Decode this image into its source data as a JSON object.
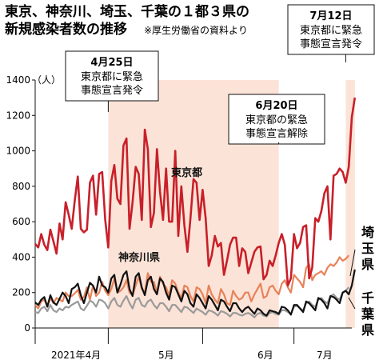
{
  "chart_data": {
    "type": "line",
    "title_lines": [
      "東京、神奈川、埼玉、千葉の１都３県の",
      "新規感染者数の推移"
    ],
    "source_note": "※厚生労働省の資料より",
    "unit_label": "（人）",
    "yticks": [
      0,
      200,
      400,
      600,
      800,
      1000,
      1200,
      1400
    ],
    "ylim": [
      0,
      1400
    ],
    "xlabels": [
      "2021年4月",
      "5月",
      "6月",
      "7月"
    ],
    "emergency_periods": [
      {
        "start_day": 24,
        "end_day": 80
      },
      {
        "start_day": 102,
        "end_day": 105
      }
    ],
    "annotations": [
      {
        "date": "4月25日",
        "text_lines": [
          "東京都に緊急",
          "事態宣言発令"
        ]
      },
      {
        "date": "6月20日",
        "text_lines": [
          "東京都の緊急",
          "事態宣言解除"
        ]
      },
      {
        "date": "7月12日",
        "text_lines": [
          "東京都に緊急",
          "事態宣言発令"
        ]
      }
    ],
    "series": [
      {
        "name": "東京都",
        "color": "#c8202a",
        "x_start_day": 0,
        "values": [
          475,
          455,
          530,
          470,
          440,
          555,
          490,
          420,
          590,
          500,
          710,
          640,
          560,
          720,
          855,
          560,
          540,
          555,
          820,
          860,
          640,
          870,
          880,
          610,
          455,
          830,
          920,
          730,
          700,
          1030,
          1070,
          560,
          710,
          910,
          870,
          610,
          1120,
          1010,
          570,
          650,
          1010,
          770,
          610,
          900,
          600,
          600,
          1000,
          520,
          800,
          580,
          430,
          620,
          840,
          820,
          610,
          780,
          620,
          350,
          410,
          520,
          460,
          480,
          300,
          380,
          470,
          510,
          510,
          350,
          450,
          430,
          310,
          370,
          430,
          455,
          460,
          275,
          300,
          380,
          350,
          410,
          480,
          530,
          470,
          240,
          280,
          530,
          450,
          480,
          570,
          580,
          280,
          340,
          620,
          600,
          660,
          760,
          800,
          500,
          860,
          870,
          900,
          880,
          820,
          910,
          1190,
          1300
        ]
      },
      {
        "name": "神奈川県",
        "color": "#111111",
        "x_start_day": 0,
        "values": [
          145,
          130,
          160,
          175,
          120,
          185,
          145,
          130,
          165,
          200,
          180,
          140,
          220,
          230,
          250,
          185,
          140,
          200,
          255,
          240,
          200,
          290,
          240,
          230,
          200,
          280,
          300,
          200,
          245,
          300,
          320,
          220,
          180,
          290,
          310,
          230,
          185,
          270,
          290,
          220,
          190,
          280,
          260,
          200,
          160,
          240,
          230,
          190,
          150,
          210,
          190,
          140,
          120,
          190,
          170,
          140,
          110,
          180,
          160,
          130,
          100,
          160,
          150,
          120,
          95,
          140,
          140,
          110,
          90,
          110,
          120,
          100,
          80,
          110,
          100,
          80,
          70,
          100,
          95,
          90,
          80,
          120,
          115,
          100,
          75,
          130,
          130,
          110,
          90,
          150,
          140,
          120,
          100,
          170,
          160,
          140,
          110,
          180,
          175,
          160,
          140,
          200,
          210,
          190,
          240,
          330
        ]
      },
      {
        "name": "埼玉県",
        "color": "#e8825a",
        "x_start_day": 0,
        "values": [
          130,
          110,
          150,
          160,
          120,
          170,
          140,
          170,
          160,
          150,
          200,
          180,
          180,
          195,
          215,
          160,
          175,
          230,
          160,
          240,
          180,
          200,
          260,
          210,
          185,
          220,
          280,
          200,
          210,
          230,
          270,
          200,
          185,
          240,
          290,
          220,
          200,
          310,
          260,
          260,
          200,
          290,
          250,
          230,
          180,
          270,
          250,
          200,
          170,
          240,
          230,
          180,
          150,
          230,
          220,
          190,
          140,
          240,
          190,
          160,
          140,
          220,
          190,
          140,
          130,
          210,
          180,
          160,
          170,
          200,
          200,
          150,
          190,
          220,
          250,
          170,
          180,
          230,
          240,
          210,
          190,
          250,
          270,
          230,
          200,
          300,
          280,
          260,
          230,
          340,
          360,
          270,
          300,
          310,
          320,
          300,
          340,
          360,
          350,
          370,
          400,
          380,
          390,
          410
        ]
      },
      {
        "name": "千葉県",
        "color": "#9a9a9a",
        "x_start_day": 0,
        "values": [
          90,
          85,
          110,
          120,
          95,
          130,
          100,
          90,
          110,
          100,
          120,
          115,
          130,
          140,
          150,
          110,
          100,
          125,
          155,
          145,
          120,
          160,
          155,
          140,
          110,
          150,
          170,
          130,
          120,
          155,
          180,
          140,
          110,
          160,
          170,
          130,
          120,
          150,
          160,
          130,
          110,
          140,
          140,
          120,
          95,
          130,
          130,
          110,
          90,
          120,
          115,
          100,
          85,
          110,
          100,
          90,
          75,
          100,
          95,
          85,
          70,
          95,
          90,
          80,
          65,
          85,
          85,
          75,
          70,
          80,
          85,
          75,
          60,
          80,
          85,
          70,
          65,
          85,
          90,
          80,
          75,
          100,
          100,
          90,
          80,
          120,
          125,
          110,
          100,
          140,
          150,
          130,
          120,
          160,
          170,
          150,
          140,
          180,
          190,
          170,
          160,
          200,
          210,
          230
        ]
      }
    ],
    "series_labels": {
      "tokyo": "東京都",
      "kanagawa": "神奈川県",
      "saitama": "埼玉県",
      "chiba": "千葉県"
    }
  }
}
